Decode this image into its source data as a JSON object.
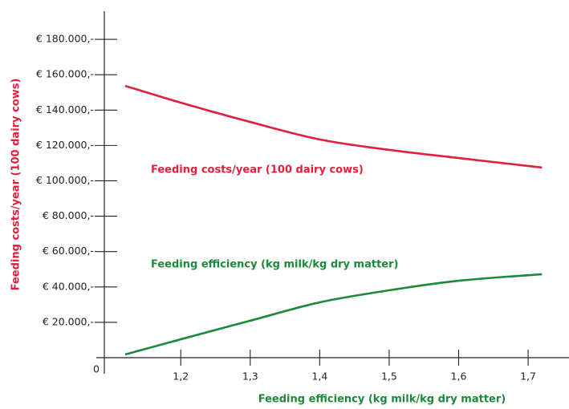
{
  "chart_data": {
    "type": "line",
    "ylabel": "Feeding costs/year (100 dairy cows)",
    "xlabel": "Feeding efficiency (kg milk/kg dry matter)",
    "x": [
      1.12,
      1.2,
      1.3,
      1.4,
      1.5,
      1.6,
      1.72
    ],
    "series": [
      {
        "name": "Feeding costs/year (100 dairy cows)",
        "color": "#e0203a",
        "values": [
          153700,
          144200,
          133300,
          123400,
          117500,
          112900,
          107500
        ]
      },
      {
        "name": "Feeding efficiency (kg milk/kg dry matter)",
        "color": "#1a8a3a",
        "values": [
          1800,
          10400,
          20900,
          31300,
          38100,
          43500,
          47200
        ]
      }
    ],
    "xlim": [
      1.09,
      1.76
    ],
    "xticks": [
      {
        "value": 1.2,
        "label": "1,2"
      },
      {
        "value": 1.3,
        "label": "1,3"
      },
      {
        "value": 1.4,
        "label": "1,4"
      },
      {
        "value": 1.5,
        "label": "1,5"
      },
      {
        "value": 1.6,
        "label": "1,6"
      },
      {
        "value": 1.7,
        "label": "1,7"
      }
    ],
    "ylim": [
      0,
      195000
    ],
    "yticks": [
      0,
      {
        "value": 20000,
        "label": "€ 20.000,-"
      },
      {
        "value": 40000,
        "label": "€ 40.000,-"
      },
      {
        "value": 60000,
        "label": "€ 60.000,-"
      },
      {
        "value": 80000,
        "label": "€ 80.000,-"
      },
      {
        "value": 100000,
        "label": "€ 100.000,-"
      },
      {
        "value": 120000,
        "label": "€ 120.000,-"
      },
      {
        "value": 140000,
        "label": "€ 140.000,-"
      },
      {
        "value": 160000,
        "label": "€ 160.000,-"
      },
      {
        "value": 180000,
        "label": "€ 180.000,-"
      }
    ]
  }
}
